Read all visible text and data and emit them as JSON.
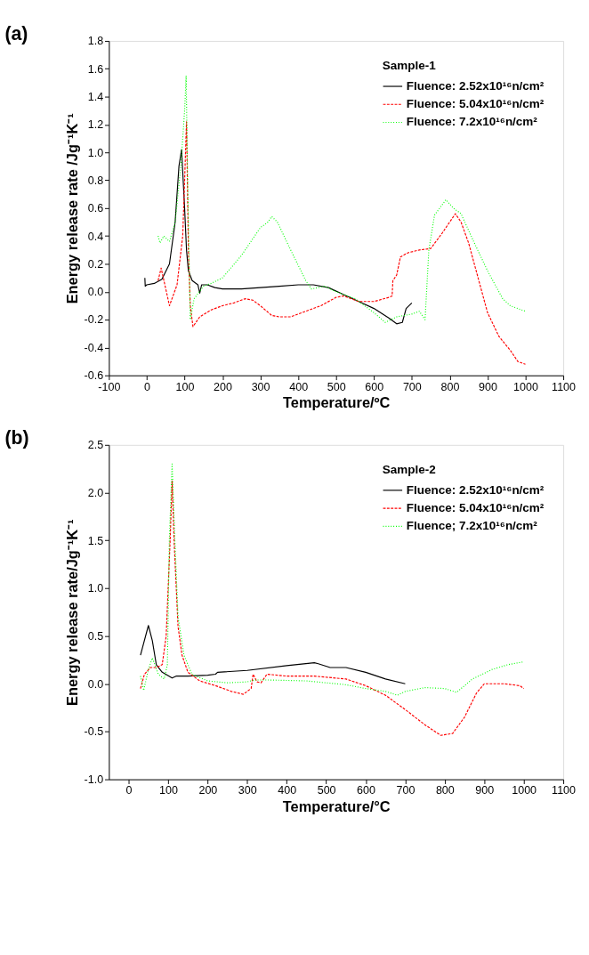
{
  "chart_data": [
    {
      "type": "line",
      "title": "(a)",
      "xlabel": "Temperature/ºC",
      "ylabel": "Energy release rate /Jg⁻¹K⁻¹",
      "legend_title": "Sample-1",
      "legend": "top right",
      "grid": false,
      "xlim": [
        -100,
        1100
      ],
      "xticks": [
        -100,
        0,
        100,
        200,
        300,
        400,
        500,
        600,
        700,
        800,
        900,
        1000,
        1100
      ],
      "ylim": [
        -0.6,
        1.8
      ],
      "yticks": [
        {
          "value": -0.6,
          "label": "-0.6"
        },
        {
          "value": -0.4,
          "label": "-0.4"
        },
        {
          "value": -0.2,
          "label": "-0.2"
        },
        {
          "value": 0,
          "label": "0.0"
        },
        {
          "value": 0.2,
          "label": "0.2"
        },
        {
          "value": 0.4,
          "label": "0.4"
        },
        {
          "value": 0.6,
          "label": "0.6"
        },
        {
          "value": 0.8,
          "label": "0.8"
        },
        {
          "value": 1,
          "label": "1.0"
        },
        {
          "value": 1.2,
          "label": "1.2"
        },
        {
          "value": 1.4,
          "label": "1.4"
        },
        {
          "value": 1.6,
          "label": "1.6"
        },
        {
          "value": 1.8,
          "label": "1.8"
        }
      ],
      "series": [
        {
          "name": "Fluence: 2.52x10¹⁶n/cm²",
          "color": "#000000",
          "line_style": "solid",
          "x": [
            -5,
            -4,
            0,
            20,
            40,
            60,
            75,
            85,
            92,
            100,
            105,
            110,
            120,
            135,
            140,
            145,
            160,
            180,
            200,
            250,
            300,
            350,
            400,
            440,
            480,
            520,
            560,
            600,
            640,
            660,
            675,
            685,
            700
          ],
          "values": [
            0.1,
            0.04,
            0.05,
            0.06,
            0.09,
            0.2,
            0.5,
            0.9,
            1.02,
            0.6,
            0.3,
            0.15,
            0.08,
            0.05,
            -0.01,
            0.05,
            0.05,
            0.03,
            0.02,
            0.02,
            0.03,
            0.04,
            0.05,
            0.05,
            0.03,
            -0.02,
            -0.07,
            -0.12,
            -0.19,
            -0.23,
            -0.22,
            -0.12,
            -0.08
          ]
        },
        {
          "name": "Fluence: 5.04x10¹⁶n/cm²",
          "color": "#ff0000",
          "line_style": "dashed",
          "x": [
            30,
            38,
            60,
            80,
            95,
            100,
            105,
            110,
            115,
            122,
            140,
            170,
            200,
            230,
            260,
            280,
            300,
            330,
            350,
            380,
            420,
            460,
            500,
            520,
            560,
            600,
            640,
            648,
            650,
            660,
            670,
            690,
            720,
            750,
            780,
            800,
            815,
            830,
            850,
            880,
            900,
            930,
            960,
            980,
            1000
          ],
          "values": [
            0.08,
            0.17,
            -0.1,
            0.05,
            0.4,
            0.8,
            1.22,
            0.3,
            -0.1,
            -0.25,
            -0.18,
            -0.13,
            -0.1,
            -0.08,
            -0.05,
            -0.06,
            -0.1,
            -0.17,
            -0.18,
            -0.18,
            -0.14,
            -0.1,
            -0.04,
            -0.03,
            -0.07,
            -0.07,
            -0.04,
            -0.03,
            0.08,
            0.12,
            0.25,
            0.28,
            0.3,
            0.31,
            0.42,
            0.5,
            0.56,
            0.5,
            0.35,
            0.05,
            -0.15,
            -0.32,
            -0.42,
            -0.5,
            -0.52
          ]
        },
        {
          "name": "Fluence: 7.2x10¹⁶n/cm²",
          "color": "#00ff00",
          "line_style": "dotted",
          "x": [
            30,
            35,
            45,
            60,
            75,
            90,
            100,
            104,
            108,
            112,
            115,
            125,
            150,
            170,
            200,
            250,
            300,
            320,
            330,
            345,
            380,
            420,
            435,
            470,
            500,
            550,
            600,
            630,
            660,
            700,
            720,
            735,
            745,
            760,
            790,
            810,
            830,
            860,
            900,
            920,
            940,
            960,
            1000
          ],
          "values": [
            0.4,
            0.35,
            0.4,
            0.36,
            0.5,
            0.9,
            1.3,
            1.55,
            0.8,
            0.2,
            -0.2,
            -0.05,
            0.04,
            0.06,
            0.1,
            0.26,
            0.46,
            0.5,
            0.54,
            0.5,
            0.3,
            0.08,
            0.02,
            0.04,
            0.0,
            -0.05,
            -0.15,
            -0.22,
            -0.18,
            -0.16,
            -0.14,
            -0.2,
            0.3,
            0.55,
            0.66,
            0.6,
            0.56,
            0.38,
            0.15,
            0.05,
            -0.05,
            -0.1,
            -0.14
          ]
        }
      ]
    },
    {
      "type": "line",
      "title": "(b)",
      "xlabel": "Temperature/°C",
      "ylabel": "Energy release rate/Jg⁻¹K⁻¹",
      "legend_title": "Sample-2",
      "legend": "top right",
      "grid": false,
      "xlim": [
        -50,
        1100
      ],
      "xticks": [
        0,
        100,
        200,
        300,
        400,
        500,
        600,
        700,
        800,
        900,
        1000,
        1100
      ],
      "ylim": [
        -1.0,
        2.5
      ],
      "yticks": [
        {
          "value": -1,
          "label": "-1.0"
        },
        {
          "value": -0.5,
          "label": "-0.5"
        },
        {
          "value": 0,
          "label": "0.0"
        },
        {
          "value": 0.5,
          "label": "0.5"
        },
        {
          "value": 1,
          "label": "1.0"
        },
        {
          "value": 1.5,
          "label": "1.5"
        },
        {
          "value": 2,
          "label": "2.0"
        },
        {
          "value": 2.5,
          "label": "2.5"
        }
      ],
      "series": [
        {
          "name": "Fluence: 2.52x10¹⁶n/cm²",
          "color": "#000000",
          "line_style": "solid",
          "x": [
            30,
            50,
            60,
            70,
            85,
            110,
            120,
            150,
            200,
            220,
            225,
            300,
            400,
            470,
            480,
            510,
            550,
            600,
            650,
            700
          ],
          "values": [
            0.3,
            0.61,
            0.45,
            0.2,
            0.12,
            0.06,
            0.08,
            0.08,
            0.09,
            0.1,
            0.12,
            0.14,
            0.19,
            0.22,
            0.21,
            0.17,
            0.17,
            0.12,
            0.05,
            0.0
          ]
        },
        {
          "name": "Fluence: 5.04x10¹⁶n/cm²",
          "color": "#ff0000",
          "line_style": "dashed",
          "x": [
            30,
            40,
            55,
            70,
            85,
            95,
            105,
            110,
            115,
            125,
            135,
            150,
            180,
            220,
            260,
            290,
            310,
            315,
            325,
            335,
            350,
            400,
            470,
            550,
            600,
            650,
            700,
            750,
            790,
            820,
            850,
            880,
            900,
            950,
            990,
            1000
          ],
          "values": [
            -0.05,
            0.1,
            0.17,
            0.17,
            0.2,
            0.5,
            1.5,
            2.12,
            1.5,
            0.6,
            0.3,
            0.12,
            0.03,
            -0.02,
            -0.08,
            -0.11,
            -0.05,
            0.1,
            0.02,
            0.01,
            0.1,
            0.08,
            0.08,
            0.05,
            -0.02,
            -0.12,
            -0.27,
            -0.43,
            -0.54,
            -0.52,
            -0.35,
            -0.1,
            0.0,
            0.0,
            -0.02,
            -0.05
          ]
        },
        {
          "name": "Fluence; 7.2x10¹⁶n/cm²",
          "color": "#00ff00",
          "line_style": "dotted",
          "x": [
            30,
            38,
            50,
            60,
            75,
            90,
            98,
            103,
            110,
            117,
            125,
            140,
            160,
            200,
            250,
            300,
            320,
            350,
            450,
            500,
            550,
            600,
            650,
            680,
            700,
            750,
            800,
            830,
            870,
            920,
            960,
            1000
          ],
          "values": [
            0.08,
            -0.07,
            0.15,
            0.27,
            0.1,
            0.05,
            0.2,
            1.5,
            2.3,
            1.5,
            0.7,
            0.3,
            0.1,
            0.03,
            0.01,
            0.02,
            0.04,
            0.04,
            0.03,
            0.01,
            -0.01,
            -0.05,
            -0.08,
            -0.12,
            -0.08,
            -0.04,
            -0.05,
            -0.09,
            0.05,
            0.15,
            0.2,
            0.23
          ]
        }
      ]
    }
  ]
}
